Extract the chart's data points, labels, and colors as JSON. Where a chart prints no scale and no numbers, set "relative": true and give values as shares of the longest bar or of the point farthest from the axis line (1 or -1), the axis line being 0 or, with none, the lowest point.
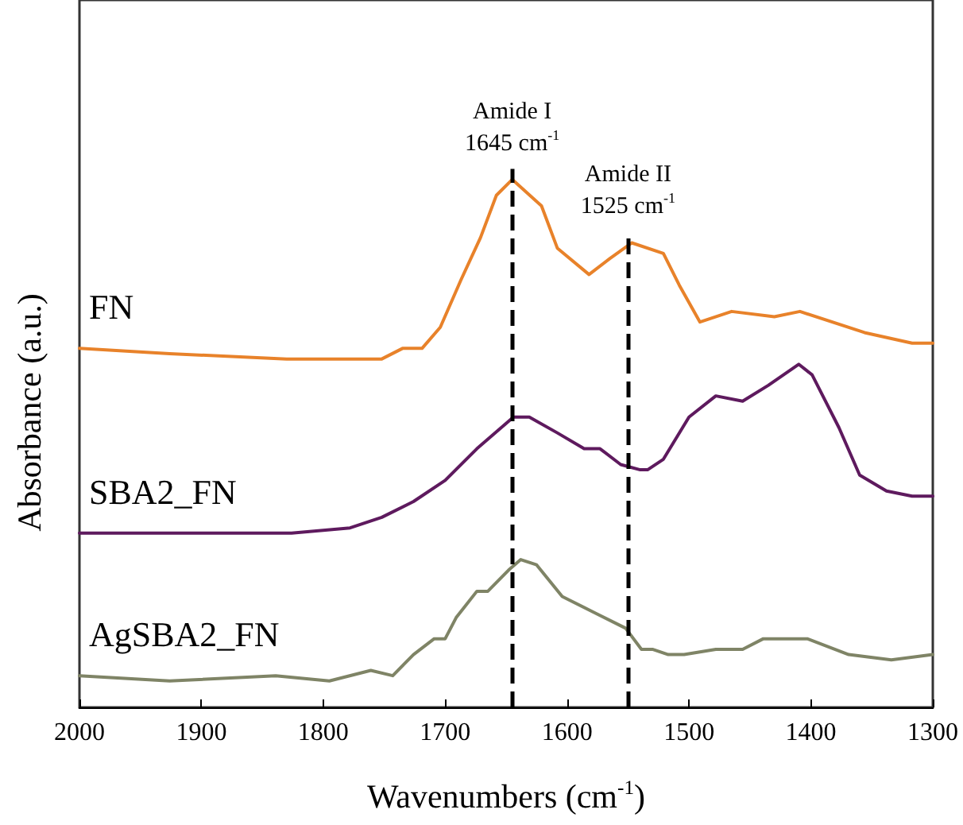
{
  "chart_data": {
    "type": "line",
    "relative": true,
    "xlabel": "Wavenumbers (cm$^{-1}$)",
    "ylabel": "Absorbance (a.u.)",
    "xlim": [
      2000,
      1300
    ],
    "xticks": [
      2000,
      1900,
      1800,
      1700,
      1600,
      1500,
      1400,
      1300
    ],
    "grid": false,
    "legend": false,
    "marker": "none",
    "line_style": "solid",
    "series": [
      {
        "name": "FN",
        "color": "#e8822a",
        "x": [
          2000,
          1926,
          1830,
          1752,
          1735,
          1719,
          1704,
          1687,
          1671,
          1658,
          1645,
          1621,
          1608,
          1582,
          1565,
          1547,
          1521,
          1508,
          1491,
          1465,
          1430,
          1409,
          1356,
          1317,
          1300
        ],
        "values": [
          0.68,
          0.67,
          0.66,
          0.66,
          0.68,
          0.68,
          0.72,
          0.81,
          0.89,
          0.97,
          1.0,
          0.95,
          0.87,
          0.82,
          0.85,
          0.88,
          0.86,
          0.8,
          0.73,
          0.75,
          0.74,
          0.75,
          0.71,
          0.69,
          0.69
        ]
      },
      {
        "name": "SBA2_FN",
        "color": "#5e1a5e",
        "x": [
          2000,
          1826,
          1778,
          1752,
          1726,
          1700,
          1674,
          1644,
          1631,
          1608,
          1586,
          1573,
          1556,
          1540,
          1534,
          1521,
          1500,
          1478,
          1456,
          1435,
          1410,
          1399,
          1377,
          1360,
          1338,
          1317,
          1300
        ],
        "values": [
          0.33,
          0.33,
          0.34,
          0.36,
          0.39,
          0.43,
          0.49,
          0.55,
          0.55,
          0.52,
          0.49,
          0.49,
          0.46,
          0.45,
          0.45,
          0.47,
          0.55,
          0.59,
          0.58,
          0.61,
          0.65,
          0.63,
          0.53,
          0.44,
          0.41,
          0.4,
          0.4
        ]
      },
      {
        "name": "AgSBA2_FN",
        "color": "#7f8466",
        "x": [
          2000,
          1926,
          1839,
          1795,
          1761,
          1743,
          1726,
          1709,
          1700,
          1691,
          1674,
          1665,
          1648,
          1638,
          1625,
          1604,
          1578,
          1552,
          1539,
          1530,
          1517,
          1504,
          1478,
          1456,
          1439,
          1403,
          1369,
          1334,
          1300
        ],
        "values": [
          0.06,
          0.05,
          0.06,
          0.05,
          0.07,
          0.06,
          0.1,
          0.13,
          0.13,
          0.17,
          0.22,
          0.22,
          0.26,
          0.28,
          0.27,
          0.21,
          0.18,
          0.15,
          0.11,
          0.11,
          0.1,
          0.1,
          0.11,
          0.11,
          0.13,
          0.13,
          0.1,
          0.09,
          0.1
        ]
      }
    ],
    "ref_lines": [
      {
        "axis": "x",
        "value": 1645,
        "label": "Amide I\n1645 cm$^{-1}$",
        "color": "#000000",
        "line_style": "dashed"
      },
      {
        "axis": "x",
        "value": 1550,
        "label": "Amide II\n1525 cm$^{-1}$",
        "color": "#000000",
        "line_style": "dashed"
      }
    ]
  }
}
